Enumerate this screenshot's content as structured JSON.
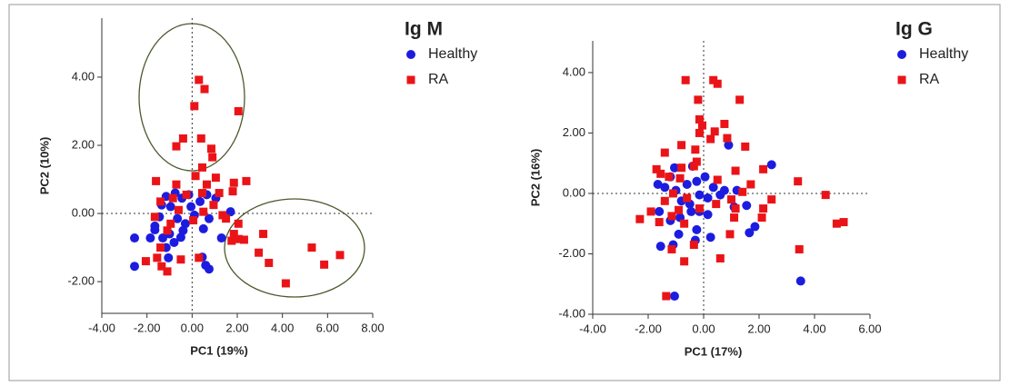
{
  "chart_data": [
    {
      "type": "scatter",
      "title": "Ig M",
      "x_label": "PC1 (19%)",
      "y_label": "PC2 (10%)",
      "xlim": [
        -4,
        8
      ],
      "ylim": [
        -2.93,
        5.73
      ],
      "xticks": [
        {
          "value": -4,
          "label": "-4.00"
        },
        {
          "value": -2,
          "label": "-2.00"
        },
        {
          "value": 0,
          "label": "0.00"
        },
        {
          "value": 2,
          "label": "2.00"
        },
        {
          "value": 4,
          "label": "4.00"
        },
        {
          "value": 6,
          "label": "6.00"
        },
        {
          "value": 8,
          "label": "8.00"
        }
      ],
      "yticks": [
        {
          "value": -2,
          "label": "-2.00"
        },
        {
          "value": 0,
          "label": "0.00"
        },
        {
          "value": 2,
          "label": "2.00"
        },
        {
          "value": 4,
          "label": "4.00"
        }
      ],
      "series": [
        {
          "name": "Healthy",
          "color": "#1c1ce0",
          "marker": "circle",
          "x": [
            -2.55,
            -2.55,
            -1.85,
            -1.65,
            -1.45,
            -1.35,
            -1.15,
            -0.95,
            -0.75,
            -0.45,
            -0.15,
            -0.65,
            -0.3,
            -1.0,
            -1.3,
            -1.15,
            -1.05,
            -0.8,
            -0.4,
            0.1,
            0.35,
            0.65,
            1.05,
            0.75,
            0.5,
            -0.5,
            1.3,
            1.7,
            0.45,
            0.6,
            0.75,
            -1.65,
            -0.05
          ],
          "values": [
            -0.72,
            -1.55,
            -0.72,
            -0.37,
            -0.1,
            0.25,
            0.5,
            0.2,
            0.6,
            0.45,
            0.55,
            -0.15,
            -0.3,
            -0.6,
            -0.72,
            -1.0,
            -1.3,
            -0.85,
            -0.5,
            -0.05,
            0.35,
            0.55,
            0.45,
            -0.15,
            -0.45,
            -0.7,
            -0.72,
            0.05,
            -1.28,
            -1.52,
            -1.63,
            -0.48,
            0.2
          ]
        },
        {
          "name": "RA",
          "color": "#ea1418",
          "marker": "square",
          "x": [
            0.3,
            0.55,
            0.1,
            2.05,
            -0.4,
            -0.7,
            0.4,
            0.85,
            0.9,
            0.45,
            0.15,
            1.05,
            0.65,
            1.85,
            2.4,
            -1.6,
            -0.7,
            1.8,
            1.2,
            0.45,
            -0.25,
            -0.85,
            -1.4,
            0.95,
            1.5,
            2.05,
            1.85,
            1.75,
            2.05,
            2.3,
            3.15,
            2.95,
            3.4,
            5.3,
            6.55,
            5.85,
            4.15,
            -1.1,
            -1.4,
            -1.55,
            -1.35,
            -1.1,
            -2.05,
            -0.5,
            0.3,
            0.5,
            0.05,
            -0.6,
            -0.95,
            -1.65,
            1.35
          ],
          "values": [
            3.92,
            3.65,
            3.15,
            3.0,
            2.2,
            1.97,
            2.2,
            1.9,
            1.65,
            1.35,
            1.1,
            1.05,
            0.85,
            0.9,
            0.95,
            0.95,
            0.85,
            0.65,
            0.6,
            0.6,
            0.55,
            0.45,
            0.35,
            0.25,
            -0.15,
            -0.3,
            -0.6,
            -0.8,
            -0.75,
            -0.77,
            -0.6,
            -1.15,
            -1.45,
            -1.0,
            -1.22,
            -1.5,
            -2.05,
            -0.5,
            -1.0,
            -1.3,
            -1.55,
            -1.7,
            -1.4,
            -1.35,
            -1.3,
            0.05,
            -0.2,
            0.1,
            -0.3,
            -0.1,
            -0.05
          ]
        }
      ]
    },
    {
      "type": "scatter",
      "title": "Ig G",
      "x_label": "PC1 (17%)",
      "y_label": "PC2 (16%)",
      "xlim": [
        -4,
        6
      ],
      "ylim": [
        -4,
        5.05
      ],
      "xticks": [
        {
          "value": -4,
          "label": "-4.00"
        },
        {
          "value": -2,
          "label": "-2.00"
        },
        {
          "value": 0,
          "label": "0.00"
        },
        {
          "value": 2,
          "label": "2.00"
        },
        {
          "value": 4,
          "label": "4.00"
        },
        {
          "value": 6,
          "label": "6.00"
        }
      ],
      "yticks": [
        {
          "value": -4,
          "label": "-4.00"
        },
        {
          "value": -2,
          "label": "-2.00"
        },
        {
          "value": 0,
          "label": "0.00"
        },
        {
          "value": 2,
          "label": "2.00"
        },
        {
          "value": 4,
          "label": "4.00"
        }
      ],
      "series": [
        {
          "name": "Healthy",
          "color": "#1c1ce0",
          "marker": "circle",
          "x": [
            -1.05,
            3.5,
            2.45,
            0.9,
            -0.4,
            -1.2,
            -1.65,
            -1.4,
            -1.0,
            -0.6,
            -0.25,
            0.05,
            0.35,
            0.75,
            0.15,
            -0.15,
            -0.5,
            -0.8,
            -0.45,
            -0.15,
            0.15,
            0.6,
            -0.85,
            -1.2,
            -1.55,
            -1.1,
            -0.9,
            -0.3,
            -0.25,
            0.25,
            1.65,
            1.85,
            1.55,
            1.1,
            1.2,
            -1.6,
            -1.05
          ],
          "values": [
            -3.4,
            -2.9,
            0.95,
            1.6,
            0.9,
            0.55,
            0.3,
            0.2,
            0.1,
            0.3,
            0.4,
            0.55,
            0.2,
            0.1,
            -0.15,
            -0.05,
            -0.35,
            -0.25,
            -0.6,
            -0.6,
            -0.7,
            -0.05,
            -0.8,
            -0.9,
            -1.75,
            -1.7,
            -1.35,
            -1.55,
            -1.2,
            -1.45,
            -1.3,
            -1.1,
            -0.4,
            -0.45,
            0.1,
            -0.6,
            0.85
          ]
        },
        {
          "name": "RA",
          "color": "#ea1418",
          "marker": "square",
          "x": [
            -0.65,
            0.35,
            0.5,
            -0.2,
            1.3,
            -0.15,
            -0.05,
            0.75,
            0.4,
            0.85,
            -0.15,
            0.25,
            1.5,
            -0.8,
            -0.3,
            -1.4,
            -0.25,
            -0.8,
            -0.35,
            1.15,
            2.15,
            3.4,
            -1.55,
            -1.7,
            -1.25,
            -0.85,
            0.5,
            1.7,
            2.45,
            4.4,
            1.4,
            1.0,
            0.45,
            -1.1,
            -1.4,
            -2.3,
            -1.9,
            -1.6,
            -1.15,
            -0.9,
            -0.7,
            -0.35,
            -1.15,
            -0.7,
            0.6,
            1.15,
            1.1,
            2.1,
            2.15,
            0.95,
            3.45,
            4.8,
            5.05,
            -1.35,
            -0.15,
            -0.6
          ],
          "values": [
            3.75,
            3.75,
            3.63,
            3.1,
            3.1,
            2.45,
            2.25,
            2.3,
            2.05,
            1.83,
            2.0,
            1.8,
            1.55,
            1.6,
            1.45,
            1.35,
            1.05,
            0.85,
            0.9,
            0.75,
            0.8,
            0.4,
            0.65,
            0.8,
            0.55,
            0.5,
            0.45,
            0.3,
            -0.2,
            -0.05,
            0.05,
            -0.2,
            -0.35,
            0,
            -0.25,
            -0.85,
            -0.6,
            -0.95,
            -0.75,
            -0.55,
            -1.0,
            -1.7,
            -1.85,
            -2.25,
            -2.15,
            -0.5,
            -0.8,
            -0.8,
            -0.5,
            -1.35,
            -1.85,
            -1.0,
            -0.95,
            -3.4,
            -0.5,
            -0.15
          ]
        }
      ]
    }
  ]
}
